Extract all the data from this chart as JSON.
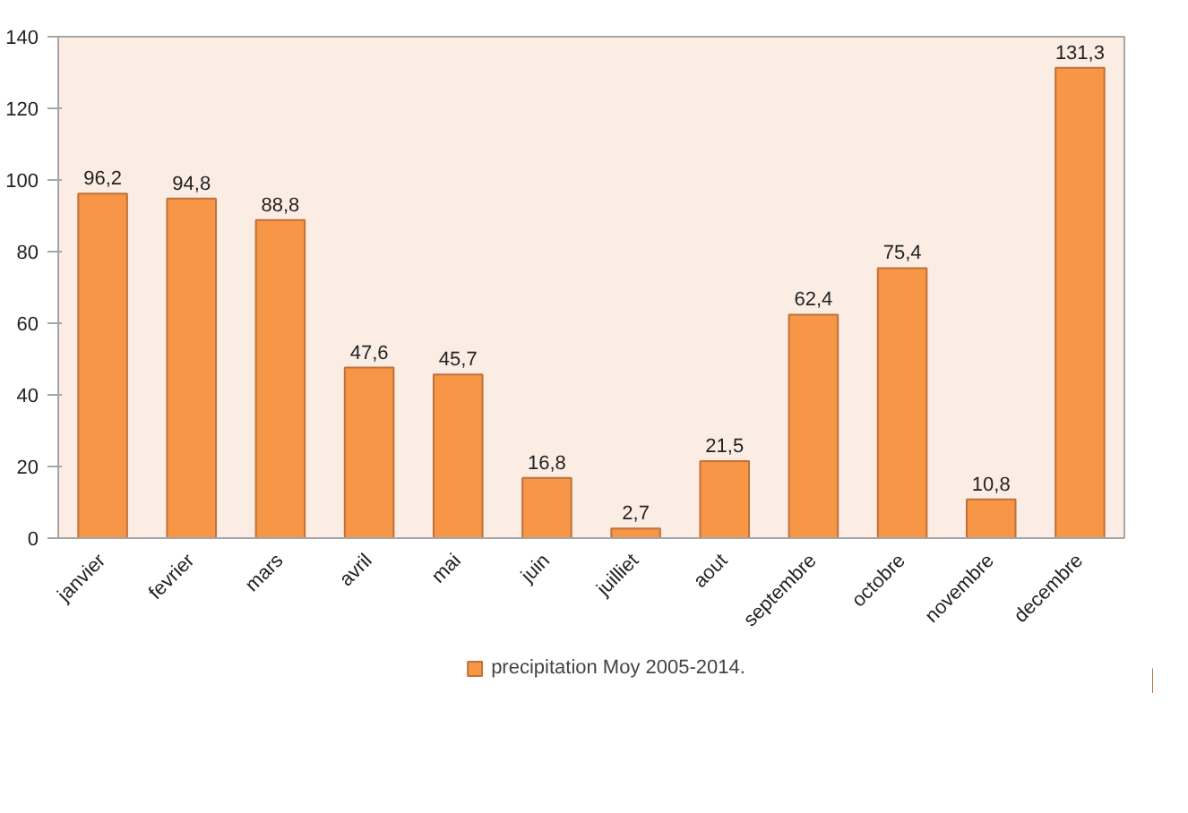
{
  "chart_data": {
    "type": "bar",
    "categories": [
      "janvier",
      "fevrier",
      "mars",
      "avril",
      "mai",
      "juin",
      "juilliet",
      "aout",
      "septembre",
      "octobre",
      "novembre",
      "decembre"
    ],
    "series": [
      {
        "name": "precipitation Moy 2005-2014.",
        "color": "#f79646",
        "values": [
          96.2,
          94.8,
          88.8,
          47.6,
          45.7,
          16.8,
          2.7,
          21.5,
          62.4,
          75.4,
          10.8,
          131.3
        ],
        "value_labels": [
          "96,2",
          "94,8",
          "88,8",
          "47,6",
          "45,7",
          "16,8",
          "2,7",
          "21,5",
          "62,4",
          "75,4",
          "10,8",
          "131,3"
        ]
      }
    ],
    "ylim": [
      0,
      140
    ],
    "yticks": [
      0,
      20,
      40,
      60,
      80,
      100,
      120,
      140
    ],
    "legend": "bottom"
  }
}
